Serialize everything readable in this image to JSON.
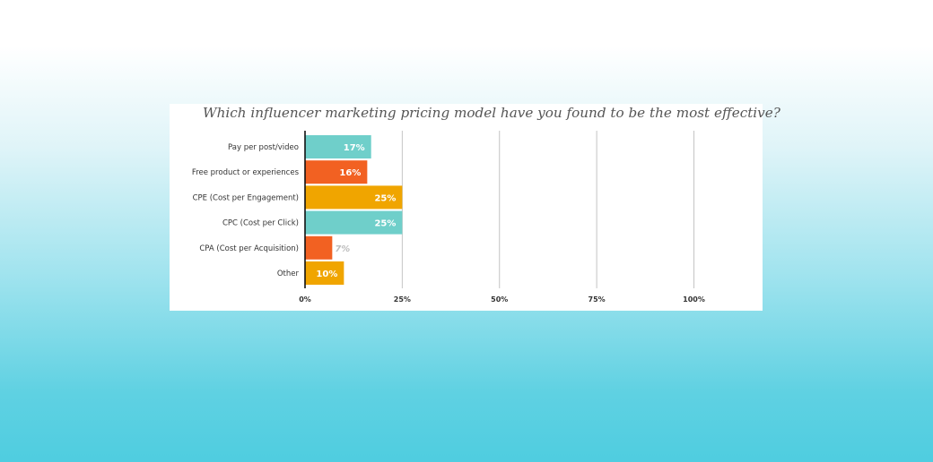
{
  "chart_data": {
    "type": "bar",
    "orientation": "horizontal",
    "title": "Which influencer marketing pricing model have you found to be the most effective?",
    "categories": [
      "Pay per post/video",
      "Free product or experiences",
      "CPE (Cost per Engagement)",
      "CPC (Cost per Click)",
      "CPA (Cost per Acquisition)",
      "Other"
    ],
    "values": [
      17,
      16,
      25,
      25,
      7,
      10
    ],
    "value_labels": [
      "17%",
      "16%",
      "25%",
      "25%",
      "7%",
      "10%"
    ],
    "bar_colors": [
      "#6fcfca",
      "#f26122",
      "#f0a500",
      "#6fcfca",
      "#f26122",
      "#f0a500"
    ],
    "xlim": [
      0,
      100
    ],
    "xticks": [
      0,
      25,
      50,
      75,
      100
    ],
    "xtick_labels": [
      "0%",
      "25%",
      "50%",
      "75%",
      "100%"
    ],
    "grid": true,
    "legend": "none"
  }
}
